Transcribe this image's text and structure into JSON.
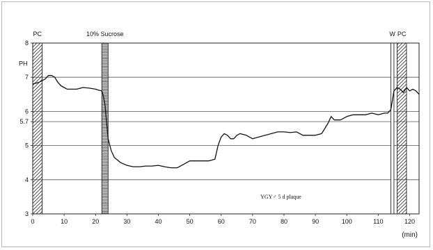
{
  "chart_data": {
    "type": "line",
    "ylabel": "PH",
    "xlabel": "(min)",
    "xlim": [
      0,
      123
    ],
    "ylim": [
      3,
      8
    ],
    "x_ticks": [
      0,
      10,
      20,
      30,
      40,
      50,
      60,
      70,
      80,
      90,
      100,
      110,
      120
    ],
    "y_ticks": [
      {
        "value": 3,
        "label": "3"
      },
      {
        "value": 4,
        "label": "4"
      },
      {
        "value": 5,
        "label": "5"
      },
      {
        "value": 5.7,
        "label": "5.7"
      },
      {
        "value": 6,
        "label": "6"
      },
      {
        "value": 7,
        "label": "7"
      },
      {
        "value": 8,
        "label": "8"
      }
    ],
    "grid": "horizontal",
    "annotation": "YGY♂   5 d plaque",
    "bands": [
      {
        "label": "PC",
        "x0": 0,
        "x1": 3,
        "fill": "diagonal"
      },
      {
        "label": "10% Sucrose",
        "x0": 22,
        "x1": 24,
        "fill": "horizontal"
      },
      {
        "label": "W",
        "x0": 114,
        "x1": 115,
        "fill": "none"
      },
      {
        "label": "PC",
        "x0": 116,
        "x1": 119,
        "fill": "diagonal"
      }
    ],
    "series": [
      {
        "x": [
          0,
          2,
          4,
          5,
          6,
          7,
          8,
          9,
          10,
          11,
          12,
          14,
          16,
          18,
          20,
          21,
          22,
          22.5,
          23,
          23.5,
          24,
          25,
          26,
          28,
          30,
          32,
          34,
          36,
          38,
          40,
          42,
          44,
          46,
          48,
          50,
          52,
          54,
          56,
          58,
          59,
          60,
          61,
          62,
          63,
          64,
          65,
          66,
          68,
          70,
          72,
          74,
          76,
          78,
          80,
          82,
          84,
          86,
          88,
          90,
          92,
          93,
          94,
          95,
          96,
          98,
          100,
          102,
          104,
          106,
          108,
          110,
          112,
          113,
          114,
          115,
          116,
          117,
          118,
          119,
          120,
          121,
          122,
          123
        ],
        "y": [
          6.8,
          6.85,
          6.95,
          7.05,
          7.05,
          7.0,
          6.85,
          6.75,
          6.7,
          6.65,
          6.65,
          6.65,
          6.7,
          6.68,
          6.65,
          6.62,
          6.6,
          6.45,
          6.2,
          5.7,
          5.2,
          4.85,
          4.65,
          4.5,
          4.42,
          4.38,
          4.38,
          4.4,
          4.4,
          4.42,
          4.38,
          4.35,
          4.35,
          4.45,
          4.55,
          4.55,
          4.55,
          4.55,
          4.6,
          5.0,
          5.25,
          5.35,
          5.3,
          5.2,
          5.2,
          5.3,
          5.35,
          5.3,
          5.2,
          5.25,
          5.3,
          5.35,
          5.4,
          5.4,
          5.38,
          5.4,
          5.3,
          5.3,
          5.3,
          5.35,
          5.5,
          5.65,
          5.85,
          5.75,
          5.75,
          5.85,
          5.9,
          5.9,
          5.9,
          5.95,
          5.9,
          5.95,
          5.95,
          6.05,
          6.6,
          6.7,
          6.65,
          6.55,
          6.7,
          6.6,
          6.65,
          6.6,
          6.5
        ]
      }
    ]
  }
}
